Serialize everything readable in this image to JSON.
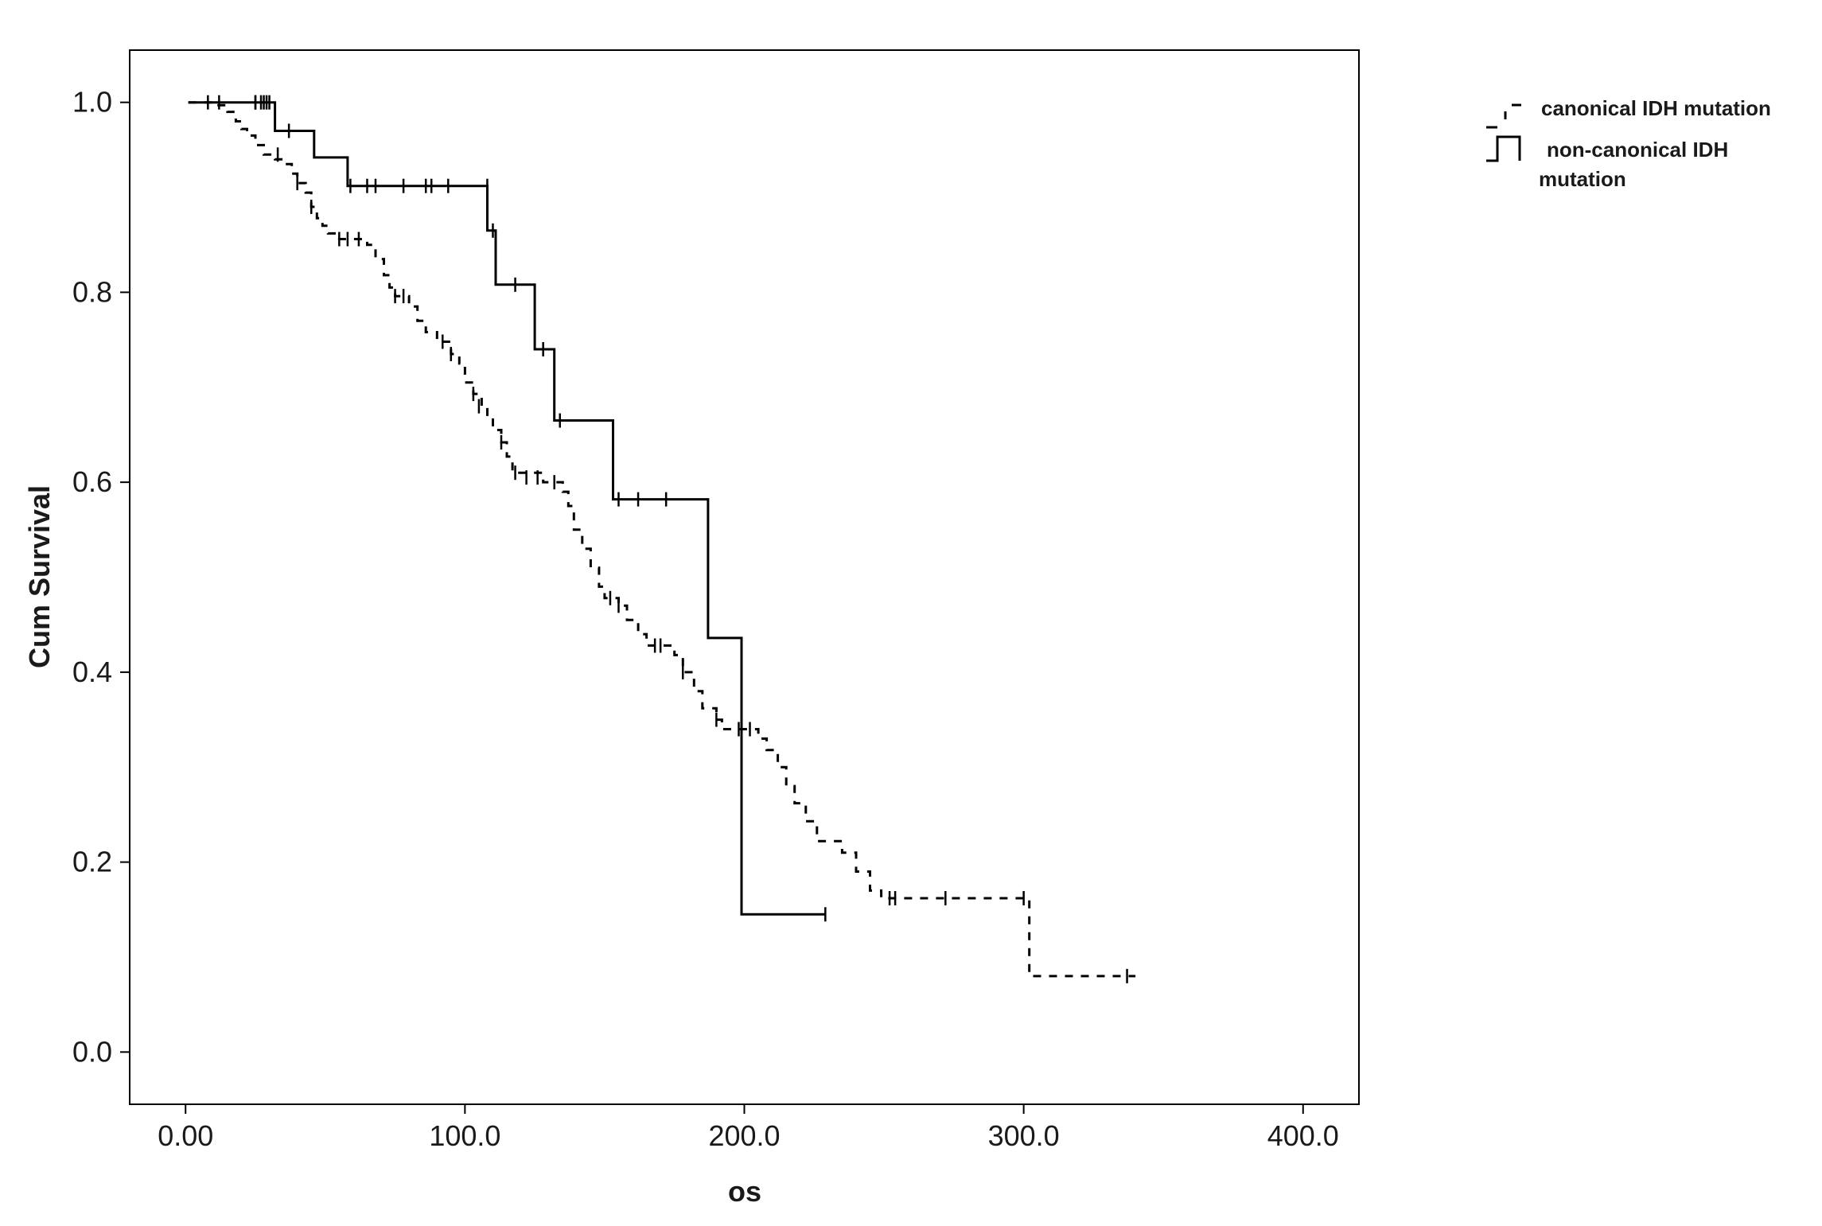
{
  "chart_data": {
    "type": "line",
    "subtype": "kaplan-meier",
    "title": "",
    "xlabel": "os",
    "ylabel": "Cum Survival",
    "xlim": [
      -20,
      420
    ],
    "ylim": [
      -0.055,
      1.055
    ],
    "x_ticks": [
      0,
      100,
      200,
      300,
      400
    ],
    "x_tick_labels": [
      "0.00",
      "100.0",
      "200.0",
      "300.0",
      "400.0"
    ],
    "y_ticks": [
      0,
      0.2,
      0.4,
      0.6,
      0.8,
      1.0
    ],
    "y_tick_labels": [
      "0.0",
      "0.2",
      "0.4",
      "0.6",
      "0.8",
      "1.0"
    ],
    "grid": false,
    "legend_position": "top-right-outside",
    "series": [
      {
        "name": "canonical IDH mutation",
        "line_style": "dashed",
        "color": "#000000",
        "steps": [
          [
            1,
            1.0
          ],
          [
            10,
            0.997
          ],
          [
            15,
            0.99
          ],
          [
            18,
            0.98
          ],
          [
            20,
            0.972
          ],
          [
            22,
            0.965
          ],
          [
            25,
            0.955
          ],
          [
            28,
            0.945
          ],
          [
            32,
            0.94
          ],
          [
            35,
            0.935
          ],
          [
            38,
            0.925
          ],
          [
            40,
            0.915
          ],
          [
            43,
            0.905
          ],
          [
            45,
            0.89
          ],
          [
            47,
            0.878
          ],
          [
            49,
            0.87
          ],
          [
            51,
            0.862
          ],
          [
            55,
            0.856
          ],
          [
            65,
            0.85
          ],
          [
            68,
            0.835
          ],
          [
            71,
            0.818
          ],
          [
            73,
            0.805
          ],
          [
            75,
            0.796
          ],
          [
            80,
            0.785
          ],
          [
            83,
            0.77
          ],
          [
            86,
            0.758
          ],
          [
            90,
            0.748
          ],
          [
            95,
            0.735
          ],
          [
            98,
            0.725
          ],
          [
            100,
            0.705
          ],
          [
            103,
            0.693
          ],
          [
            106,
            0.68
          ],
          [
            108,
            0.668
          ],
          [
            110,
            0.655
          ],
          [
            113,
            0.642
          ],
          [
            115,
            0.627
          ],
          [
            117,
            0.61
          ],
          [
            128,
            0.6
          ],
          [
            135,
            0.59
          ],
          [
            137,
            0.575
          ],
          [
            139,
            0.55
          ],
          [
            142,
            0.53
          ],
          [
            145,
            0.51
          ],
          [
            148,
            0.49
          ],
          [
            150,
            0.478
          ],
          [
            155,
            0.47
          ],
          [
            158,
            0.455
          ],
          [
            162,
            0.44
          ],
          [
            165,
            0.428
          ],
          [
            175,
            0.418
          ],
          [
            178,
            0.4
          ],
          [
            182,
            0.38
          ],
          [
            185,
            0.362
          ],
          [
            190,
            0.35
          ],
          [
            192,
            0.34
          ],
          [
            205,
            0.33
          ],
          [
            208,
            0.318
          ],
          [
            212,
            0.3
          ],
          [
            215,
            0.28
          ],
          [
            218,
            0.262
          ],
          [
            222,
            0.243
          ],
          [
            226,
            0.222
          ],
          [
            235,
            0.21
          ],
          [
            240,
            0.19
          ],
          [
            245,
            0.17
          ],
          [
            249,
            0.162
          ],
          [
            302,
            0.08
          ],
          [
            340,
            0.08
          ]
        ],
        "censors": [
          [
            8,
            1.0
          ],
          [
            12,
            1.0
          ],
          [
            25,
            1.0
          ],
          [
            28,
            1.0
          ],
          [
            30,
            1.0
          ],
          [
            33,
            0.945
          ],
          [
            40,
            0.915
          ],
          [
            45,
            0.89
          ],
          [
            55,
            0.856
          ],
          [
            58,
            0.856
          ],
          [
            62,
            0.856
          ],
          [
            75,
            0.796
          ],
          [
            78,
            0.796
          ],
          [
            92,
            0.748
          ],
          [
            95,
            0.735
          ],
          [
            103,
            0.693
          ],
          [
            105,
            0.68
          ],
          [
            113,
            0.642
          ],
          [
            118,
            0.61
          ],
          [
            122,
            0.605
          ],
          [
            126,
            0.605
          ],
          [
            132,
            0.6
          ],
          [
            152,
            0.478
          ],
          [
            155,
            0.47
          ],
          [
            168,
            0.428
          ],
          [
            170,
            0.428
          ],
          [
            178,
            0.4
          ],
          [
            190,
            0.35
          ],
          [
            198,
            0.34
          ],
          [
            202,
            0.34
          ],
          [
            252,
            0.162
          ],
          [
            254,
            0.162
          ],
          [
            272,
            0.162
          ],
          [
            300,
            0.162
          ],
          [
            337,
            0.08
          ]
        ]
      },
      {
        "name": "non-canonical IDH mutation",
        "line_style": "solid",
        "color": "#000000",
        "steps": [
          [
            1,
            1.0
          ],
          [
            32,
            0.97
          ],
          [
            46,
            0.942
          ],
          [
            58,
            0.912
          ],
          [
            108,
            0.865
          ],
          [
            111,
            0.808
          ],
          [
            125,
            0.74
          ],
          [
            132,
            0.665
          ],
          [
            153,
            0.582
          ],
          [
            187,
            0.436
          ],
          [
            199,
            0.145
          ],
          [
            229,
            0.145
          ]
        ],
        "censors": [
          [
            25,
            1.0
          ],
          [
            27,
            1.0
          ],
          [
            29,
            1.0
          ],
          [
            37,
            0.97
          ],
          [
            59,
            0.912
          ],
          [
            65,
            0.912
          ],
          [
            68,
            0.912
          ],
          [
            78,
            0.912
          ],
          [
            86,
            0.912
          ],
          [
            88,
            0.912
          ],
          [
            94,
            0.912
          ],
          [
            108,
            0.912
          ],
          [
            110,
            0.865
          ],
          [
            118,
            0.808
          ],
          [
            128,
            0.74
          ],
          [
            134,
            0.665
          ],
          [
            155,
            0.582
          ],
          [
            162,
            0.582
          ],
          [
            172,
            0.582
          ],
          [
            229,
            0.145
          ]
        ]
      }
    ]
  }
}
